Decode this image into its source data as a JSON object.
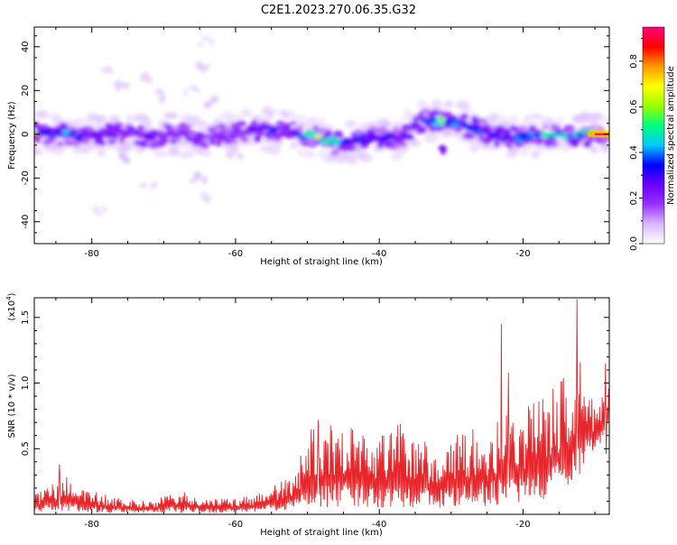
{
  "title": "C2E1.2023.270.06.35.G32",
  "chart_data": [
    {
      "type": "heatmap",
      "xlabel": "Height of straight line (km)",
      "ylabel": "Frequency (Hz)",
      "xlim": [
        -88,
        -8
      ],
      "ylim": [
        -50,
        49
      ],
      "xticks": [
        -80,
        -60,
        -40,
        -20
      ],
      "yticks": [
        -40,
        -20,
        0,
        20,
        40
      ],
      "colorbar": {
        "label": "Normalized spectral amplitude",
        "range": [
          0.0,
          0.95
        ],
        "ticks": [
          0.0,
          0.2,
          0.4,
          0.6,
          0.8
        ],
        "colors": [
          "#ffffff",
          "#d8b8ff",
          "#9b30ff",
          "#6a00ff",
          "#0000ff",
          "#00c8ff",
          "#00ff7f",
          "#9aff00",
          "#ffff00",
          "#ff9900",
          "#ff0000",
          "#ff007f"
        ]
      },
      "ridge": [
        {
          "x": -87.0,
          "y": 1.0,
          "a": 0.3
        },
        {
          "x": -84.0,
          "y": 0.0,
          "a": 0.45
        },
        {
          "x": -80.0,
          "y": -1.0,
          "a": 0.3
        },
        {
          "x": -76.0,
          "y": 1.0,
          "a": 0.25
        },
        {
          "x": -72.0,
          "y": -1.0,
          "a": 0.3
        },
        {
          "x": -68.0,
          "y": 0.0,
          "a": 0.25
        },
        {
          "x": -64.0,
          "y": -2.0,
          "a": 0.2
        },
        {
          "x": -60.0,
          "y": 1.0,
          "a": 0.25
        },
        {
          "x": -56.0,
          "y": 2.0,
          "a": 0.35
        },
        {
          "x": -52.0,
          "y": 1.0,
          "a": 0.3
        },
        {
          "x": -49.0,
          "y": -1.0,
          "a": 0.7
        },
        {
          "x": -46.0,
          "y": -4.0,
          "a": 0.5
        },
        {
          "x": -43.0,
          "y": -3.0,
          "a": 0.35
        },
        {
          "x": -40.0,
          "y": -1.0,
          "a": 0.35
        },
        {
          "x": -37.0,
          "y": -1.5,
          "a": 0.3
        },
        {
          "x": -34.0,
          "y": 6.0,
          "a": 0.4
        },
        {
          "x": -31.0,
          "y": 6.0,
          "a": 0.6
        },
        {
          "x": -28.0,
          "y": 4.0,
          "a": 0.35
        },
        {
          "x": -25.0,
          "y": 1.0,
          "a": 0.4
        },
        {
          "x": -22.0,
          "y": -2.0,
          "a": 0.35
        },
        {
          "x": -19.0,
          "y": -0.5,
          "a": 0.45
        },
        {
          "x": -16.0,
          "y": -1.0,
          "a": 0.6
        },
        {
          "x": -13.0,
          "y": 0.0,
          "a": 0.4
        },
        {
          "x": -10.0,
          "y": 0.0,
          "a": 0.8
        },
        {
          "x": -8.0,
          "y": 0.0,
          "a": 0.9
        }
      ],
      "scatter_blobs": [
        {
          "x": -78,
          "y": 30,
          "a": 0.05
        },
        {
          "x": -76,
          "y": 22,
          "a": 0.06
        },
        {
          "x": -73,
          "y": 25,
          "a": 0.05
        },
        {
          "x": -70,
          "y": 18,
          "a": 0.06
        },
        {
          "x": -66,
          "y": 20,
          "a": 0.05
        },
        {
          "x": -64,
          "y": 30,
          "a": 0.06
        },
        {
          "x": -64,
          "y": 42,
          "a": 0.04
        },
        {
          "x": -63,
          "y": 15,
          "a": 0.07
        },
        {
          "x": -65,
          "y": -20,
          "a": 0.07
        },
        {
          "x": -64,
          "y": -28,
          "a": 0.05
        },
        {
          "x": -72,
          "y": -22,
          "a": 0.05
        },
        {
          "x": -79,
          "y": -35,
          "a": 0.04
        },
        {
          "x": -75,
          "y": -12,
          "a": 0.08
        },
        {
          "x": -60,
          "y": -10,
          "a": 0.06
        },
        {
          "x": -31,
          "y": -8,
          "a": 0.25
        }
      ]
    },
    {
      "type": "line",
      "xlabel": "Height of straight line (km)",
      "ylabel": "SNR (10 * v/v)",
      "y_multiplier": "(x10",
      "y_multiplier_exp": "4",
      "y_multiplier_close": ")",
      "xlim": [
        -88,
        -8
      ],
      "ylim": [
        0,
        1.65
      ],
      "xticks": [
        -80,
        -60,
        -40,
        -20
      ],
      "yticks": [
        0.5,
        1.0,
        1.5
      ],
      "ytick_labels": [
        "0.5",
        "1.0",
        "1.5"
      ],
      "color": "#e8252a",
      "envelope": {
        "x": [
          -88,
          -84,
          -80,
          -76,
          -72,
          -68,
          -64,
          -60,
          -56,
          -52,
          -49,
          -46,
          -43,
          -40,
          -37,
          -34,
          -31,
          -28,
          -25,
          -22,
          -20,
          -18,
          -16,
          -14,
          -12,
          -10,
          -8
        ],
        "low": [
          0.02,
          0.02,
          0.01,
          0.01,
          0.01,
          0.01,
          0.01,
          0.01,
          0.02,
          0.03,
          0.05,
          0.05,
          0.05,
          0.05,
          0.05,
          0.05,
          0.04,
          0.05,
          0.06,
          0.08,
          0.06,
          0.08,
          0.15,
          0.2,
          0.3,
          0.5,
          0.6
        ],
        "high": [
          0.15,
          0.3,
          0.18,
          0.12,
          0.1,
          0.18,
          0.12,
          0.12,
          0.18,
          0.3,
          0.72,
          0.7,
          0.68,
          0.62,
          0.7,
          0.55,
          0.58,
          0.62,
          0.7,
          0.8,
          0.85,
          0.88,
          0.95,
          1.1,
          1.2,
          0.8,
          1.15
        ]
      },
      "peaks": [
        {
          "x": -84.5,
          "y": 0.38
        },
        {
          "x": -48.5,
          "y": 0.72
        },
        {
          "x": -23.0,
          "y": 1.45
        },
        {
          "x": -22.0,
          "y": 1.08
        },
        {
          "x": -12.5,
          "y": 1.64
        },
        {
          "x": -8.5,
          "y": 1.15
        }
      ]
    }
  ]
}
